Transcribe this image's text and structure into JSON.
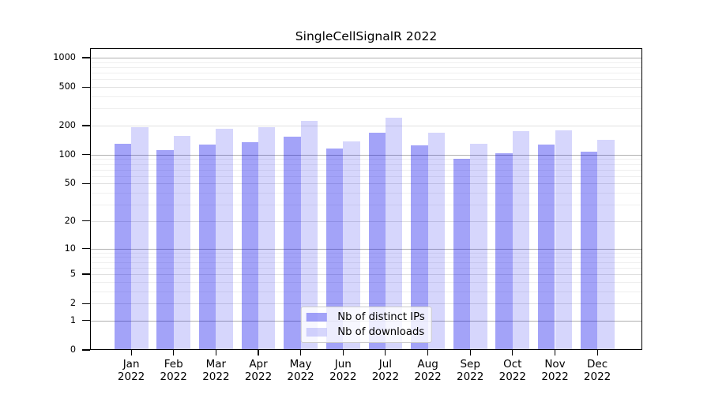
{
  "chart_data": {
    "type": "bar",
    "title": "SingleCellSignalR 2022",
    "categories": [
      "Jan",
      "Feb",
      "Mar",
      "Apr",
      "May",
      "Jun",
      "Jul",
      "Aug",
      "Sep",
      "Oct",
      "Nov",
      "Dec"
    ],
    "category_sublabel": "2022",
    "series": [
      {
        "name": "Nb of distinct IPs",
        "color": "rgba(0,0,235,0.36)",
        "values": [
          131,
          111,
          127,
          135,
          155,
          117,
          168,
          124,
          90,
          103,
          128,
          107
        ]
      },
      {
        "name": "Nb of downloads",
        "color": "rgba(0,0,235,0.16)",
        "values": [
          193,
          157,
          187,
          193,
          223,
          138,
          242,
          170,
          131,
          176,
          180,
          142
        ]
      }
    ],
    "xlabel": "",
    "ylabel": "",
    "yscale": "log1p",
    "yticks": [
      0,
      1,
      2,
      5,
      10,
      20,
      50,
      100,
      200,
      500,
      1000
    ],
    "ylim": [
      0,
      1250
    ],
    "grid": true,
    "legend_position": "lower center"
  }
}
